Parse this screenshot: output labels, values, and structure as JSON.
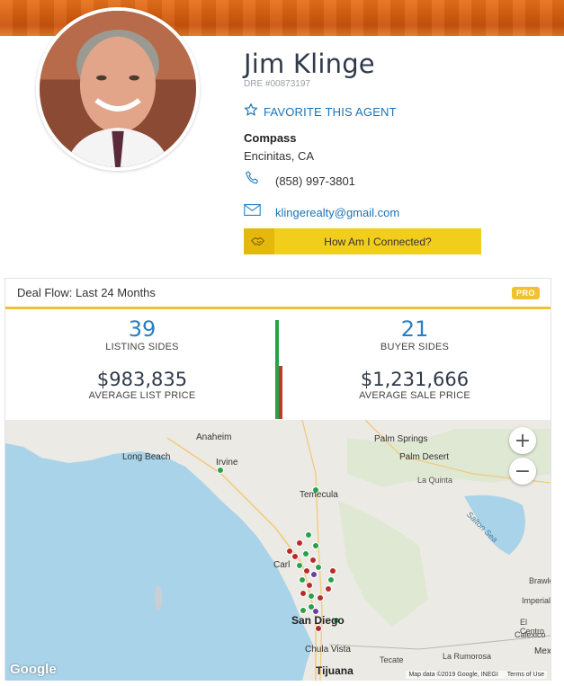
{
  "agent": {
    "name": "Jim Klinge",
    "dre": "DRE #00873197",
    "favorite_label": "FAVORITE THIS AGENT",
    "brokerage": "Compass",
    "location": "Encinitas, CA",
    "phone": "(858) 997-3801",
    "email": "klingerealty@gmail.com",
    "connect_label": "How Am I Connected?"
  },
  "deal_flow": {
    "title": "Deal Flow: Last 24 Months",
    "badge": "PRO",
    "listing_sides": "39",
    "listing_sides_label": "LISTING SIDES",
    "buyer_sides": "21",
    "buyer_sides_label": "BUYER SIDES",
    "avg_list_price": "$983,835",
    "avg_list_label": "AVERAGE LIST PRICE",
    "avg_sale_price": "$1,231,666",
    "avg_sale_label": "AVERAGE SALE PRICE",
    "listing_fraction": 1.0,
    "buyer_fraction": 0.54
  },
  "map": {
    "labels": {
      "anaheim": "Anaheim",
      "long_beach": "Long Beach",
      "irvine": "Irvine",
      "palm_springs": "Palm Springs",
      "palm_desert": "Palm Desert",
      "la_quinta": "La Quinta",
      "temecula": "Temecula",
      "salton_sea": "Salton Sea",
      "carlsbad": "Carl",
      "san_diego": "San Diego",
      "chula_vista": "Chula Vista",
      "tijuana": "Tijuana",
      "tecate": "Tecate",
      "la_rumorosa": "La Rumorosa",
      "brawley": "Brawle",
      "imperial": "Imperial",
      "el_centro": "El Centro",
      "calexico": "Calexico",
      "mex": "Mex"
    },
    "zoom_in": "+",
    "zoom_out": "−",
    "google": "Google",
    "attribution": "Map data ©2019 Google, INEGI",
    "terms": "Terms of Use",
    "colors": {
      "listing": "#2aa04a",
      "sale": "#b92b2b",
      "other": "#6a3fa0"
    }
  },
  "icons": {
    "favorite": "star-outline-icon",
    "phone": "phone-icon",
    "email": "envelope-icon",
    "connect": "handshake-icon"
  }
}
